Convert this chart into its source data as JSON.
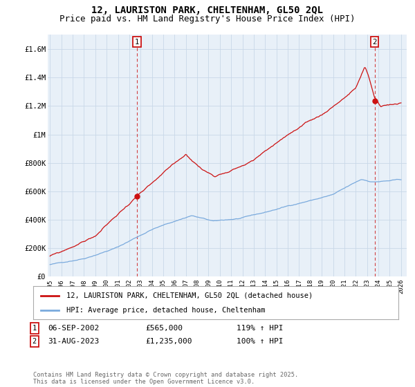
{
  "title": "12, LAURISTON PARK, CHELTENHAM, GL50 2QL",
  "subtitle": "Price paid vs. HM Land Registry's House Price Index (HPI)",
  "ylim": [
    0,
    1700000
  ],
  "yticks": [
    0,
    200000,
    400000,
    600000,
    800000,
    1000000,
    1200000,
    1400000,
    1600000
  ],
  "ytick_labels": [
    "£0",
    "£200K",
    "£400K",
    "£600K",
    "£800K",
    "£1M",
    "£1.2M",
    "£1.4M",
    "£1.6M"
  ],
  "hpi_color": "#7aaadd",
  "price_color": "#cc1111",
  "legend1": "12, LAURISTON PARK, CHELTENHAM, GL50 2QL (detached house)",
  "legend2": "HPI: Average price, detached house, Cheltenham",
  "copyright": "Contains HM Land Registry data © Crown copyright and database right 2025.\nThis data is licensed under the Open Government Licence v3.0.",
  "background_color": "#ffffff",
  "plot_bg_color": "#e8f0f8",
  "grid_color": "#c8d8e8",
  "title_fontsize": 10,
  "subtitle_fontsize": 9,
  "marker1_x": 2002.68,
  "marker1_y": 565000,
  "marker2_x": 2023.66,
  "marker2_y": 1235000,
  "xmin": 1994.8,
  "xmax": 2026.5
}
